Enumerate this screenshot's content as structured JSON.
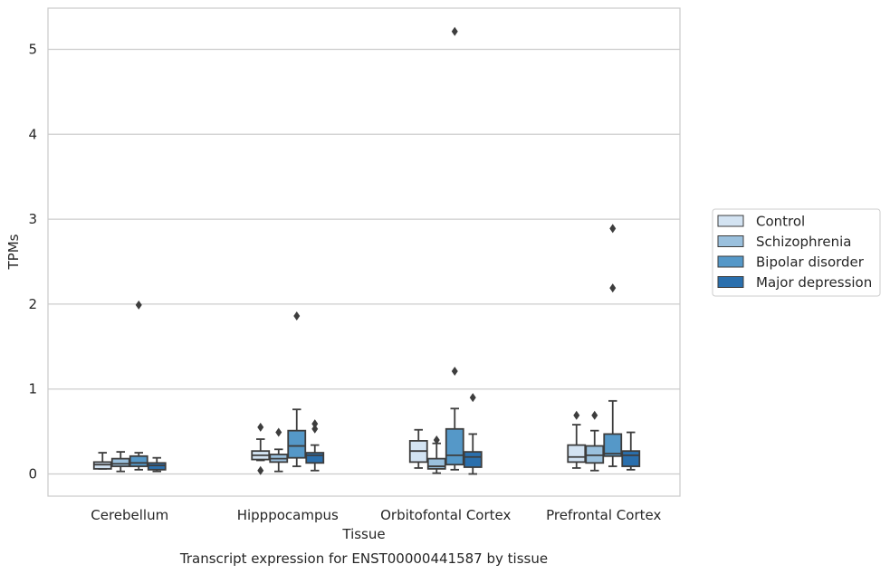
{
  "caption": "Transcript expression for ENST00000441587 by tissue",
  "chart_data": {
    "type": "boxplot",
    "xlabel": "Tissue",
    "ylabel": "TPMs",
    "ylim": [
      -0.25,
      5.5
    ],
    "yticks": [
      0,
      1,
      2,
      3,
      4,
      5
    ],
    "grid": "horizontal",
    "legend_position": "right",
    "categories": [
      "Cerebellum",
      "Hipppocampus",
      "Orbitofontal Cortex",
      "Prefrontal Cortex"
    ],
    "series": [
      {
        "name": "Control",
        "color": "#d3e3f2",
        "boxes": [
          {
            "whislo": 0.06,
            "q1": 0.06,
            "med": 0.11,
            "q3": 0.14,
            "whishi": 0.25,
            "fliers": []
          },
          {
            "whislo": 0.16,
            "q1": 0.17,
            "med": 0.22,
            "q3": 0.27,
            "whishi": 0.41,
            "fliers": [
              0.55,
              0.04
            ]
          },
          {
            "whislo": 0.07,
            "q1": 0.14,
            "med": 0.27,
            "q3": 0.39,
            "whishi": 0.52,
            "fliers": []
          },
          {
            "whislo": 0.07,
            "q1": 0.14,
            "med": 0.2,
            "q3": 0.34,
            "whishi": 0.58,
            "fliers": [
              0.69
            ]
          }
        ]
      },
      {
        "name": "Schizophrenia",
        "color": "#9ac0dd",
        "boxes": [
          {
            "whislo": 0.03,
            "q1": 0.09,
            "med": 0.12,
            "q3": 0.18,
            "whishi": 0.26,
            "fliers": []
          },
          {
            "whislo": 0.03,
            "q1": 0.14,
            "med": 0.18,
            "q3": 0.23,
            "whishi": 0.29,
            "fliers": [
              0.49
            ]
          },
          {
            "whislo": 0.01,
            "q1": 0.06,
            "med": 0.09,
            "q3": 0.18,
            "whishi": 0.36,
            "fliers": [
              0.4
            ]
          },
          {
            "whislo": 0.04,
            "q1": 0.13,
            "med": 0.22,
            "q3": 0.33,
            "whishi": 0.51,
            "fliers": [
              0.69
            ]
          }
        ]
      },
      {
        "name": "Bipolar disorder",
        "color": "#5598c8",
        "boxes": [
          {
            "whislo": 0.05,
            "q1": 0.09,
            "med": 0.13,
            "q3": 0.21,
            "whishi": 0.25,
            "fliers": [
              1.99
            ]
          },
          {
            "whislo": 0.09,
            "q1": 0.19,
            "med": 0.33,
            "q3": 0.51,
            "whishi": 0.76,
            "fliers": [
              1.86
            ]
          },
          {
            "whislo": 0.05,
            "q1": 0.11,
            "med": 0.22,
            "q3": 0.53,
            "whishi": 0.77,
            "fliers": [
              1.21,
              5.21
            ]
          },
          {
            "whislo": 0.09,
            "q1": 0.21,
            "med": 0.24,
            "q3": 0.47,
            "whishi": 0.86,
            "fliers": [
              2.19,
              2.89
            ]
          }
        ]
      },
      {
        "name": "Major depression",
        "color": "#2a6fad",
        "boxes": [
          {
            "whislo": 0.03,
            "q1": 0.05,
            "med": 0.1,
            "q3": 0.13,
            "whishi": 0.19,
            "fliers": []
          },
          {
            "whislo": 0.04,
            "q1": 0.13,
            "med": 0.22,
            "q3": 0.25,
            "whishi": 0.34,
            "fliers": [
              0.53,
              0.59
            ]
          },
          {
            "whislo": 0.0,
            "q1": 0.08,
            "med": 0.2,
            "q3": 0.26,
            "whishi": 0.47,
            "fliers": [
              0.9
            ]
          },
          {
            "whislo": 0.05,
            "q1": 0.09,
            "med": 0.22,
            "q3": 0.27,
            "whishi": 0.49,
            "fliers": []
          }
        ]
      }
    ]
  }
}
